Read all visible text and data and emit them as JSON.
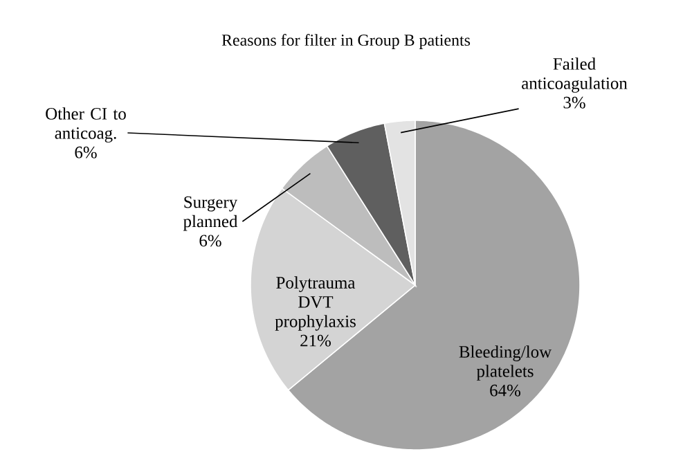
{
  "chart_data": {
    "type": "pie",
    "title": "Reasons for filter in Group B patients",
    "categories": [
      "Bleeding/low platelets",
      "Polytrauma DVT prophylaxis",
      "Surgery planned",
      "Other CI to anticoag.",
      "Failed anticoagulation"
    ],
    "values": [
      64,
      21,
      6,
      6,
      3
    ],
    "value_labels": [
      "64%",
      "21%",
      "6%",
      "6%",
      "3%"
    ],
    "colors": [
      "#a3a3a3",
      "#d4d4d4",
      "#bdbdbd",
      "#5f5f5f",
      "#e3e3e3"
    ]
  }
}
